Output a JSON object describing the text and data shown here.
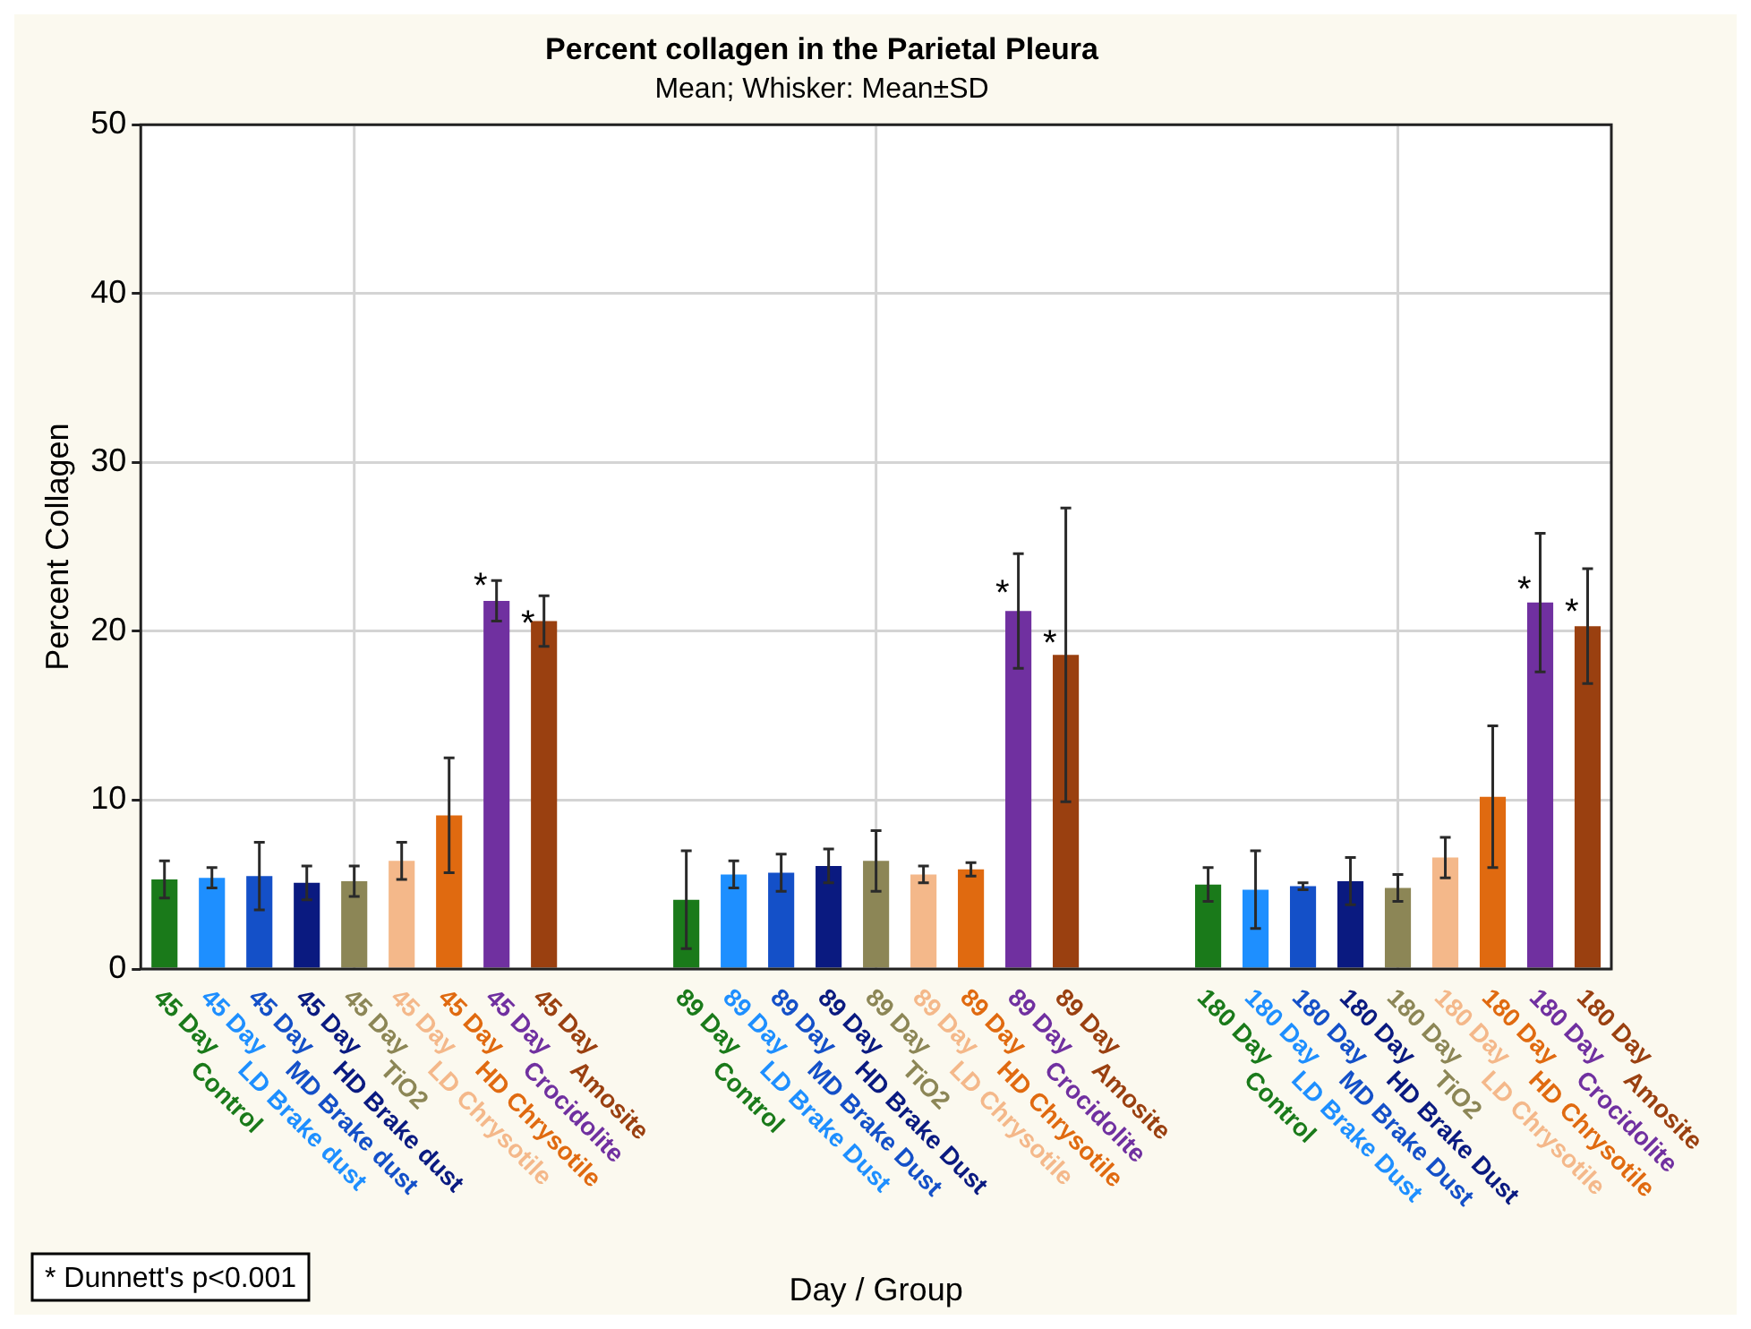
{
  "chart_data": {
    "type": "bar",
    "title": "Percent collagen in the Parietal Pleura",
    "subtitle": "Mean; Whisker: Mean±SD",
    "xlabel": "Day / Group",
    "ylabel": "Percent Collagen",
    "categories": [
      "45 Day\nControl",
      "45 Day\nLD Brake dust",
      "45 Day\nMD Brake dust",
      "45 Day\nHD Brake dust",
      "45 Day\nTiO2",
      "45 Day\nLD Chrysotile",
      "45 Day\nHD Chrysotile",
      "45 Day\nCrocidolite",
      "45 Day\nAmosite",
      null,
      null,
      "89 Day\nControl",
      "89 Day\nLD Brake Dust",
      "89 Day\nMD Brake Dust",
      "89 Day\nHD Brake Dust",
      "89 Day\nTiO2",
      "89 Day\nLD Chrysotile",
      "89 Day\nHD Chrysotile",
      "89 Day\nCrocidolite",
      "89 Day\nAmosite",
      null,
      null,
      "180 Day\nControl",
      "180 Day\nLD Brake Dust",
      "180 Day\nMD Brake Dust",
      "180 Day\nHD Brake Dust",
      "180 Day\nTiO2",
      "180 Day\nLD Chrysotile",
      "180 Day\nHD Chrysotile",
      "180 Day\nCrocidolite",
      "180 Day\nAmosite"
    ],
    "values": [
      5.3,
      5.4,
      5.5,
      5.1,
      5.2,
      6.4,
      9.1,
      21.8,
      20.6,
      null,
      null,
      4.1,
      5.6,
      5.7,
      6.1,
      6.4,
      5.6,
      5.9,
      21.2,
      18.6,
      null,
      null,
      5.0,
      4.7,
      4.9,
      5.2,
      4.8,
      6.6,
      10.2,
      21.7,
      20.3
    ],
    "errors": [
      1.1,
      0.6,
      2.0,
      1.0,
      0.9,
      1.1,
      3.4,
      1.2,
      1.5,
      null,
      null,
      2.9,
      0.8,
      1.1,
      1.0,
      1.8,
      0.5,
      0.4,
      3.4,
      8.7,
      null,
      null,
      1.0,
      2.3,
      0.2,
      1.4,
      0.8,
      1.2,
      4.2,
      4.1,
      3.4
    ],
    "colors": [
      "#1a7a1a",
      "#1e8fff",
      "#1450c8",
      "#0a1a80",
      "#8c8656",
      "#f4b88a",
      "#e06a10",
      "#7030a0",
      "#9a4010",
      null,
      null,
      "#1a7a1a",
      "#1e8fff",
      "#1450c8",
      "#0a1a80",
      "#8c8656",
      "#f4b88a",
      "#e06a10",
      "#7030a0",
      "#9a4010",
      null,
      null,
      "#1a7a1a",
      "#1e8fff",
      "#1450c8",
      "#0a1a80",
      "#8c8656",
      "#f4b88a",
      "#e06a10",
      "#7030a0",
      "#9a4010"
    ],
    "ylim": [
      0,
      50
    ],
    "yticks": [
      0,
      10,
      20,
      30,
      40,
      50
    ],
    "grid": true,
    "legend": false,
    "annotations": [
      {
        "text": "*",
        "x": "45 Day\nCrocidolite",
        "y": 23.0
      },
      {
        "text": "*",
        "x": "45 Day\nAmosite",
        "y": 20.8
      },
      {
        "text": "*",
        "x": "89 Day\nCrocidolite",
        "y": 22.6
      },
      {
        "text": "*",
        "x": "89 Day\nAmosite",
        "y": 19.6
      },
      {
        "text": "*",
        "x": "180 Day\nCrocidolite",
        "y": 22.8
      },
      {
        "text": "*",
        "x": "180 Day\nAmosite",
        "y": 21.5
      },
      "* Dunnett's p<0.001"
    ]
  }
}
